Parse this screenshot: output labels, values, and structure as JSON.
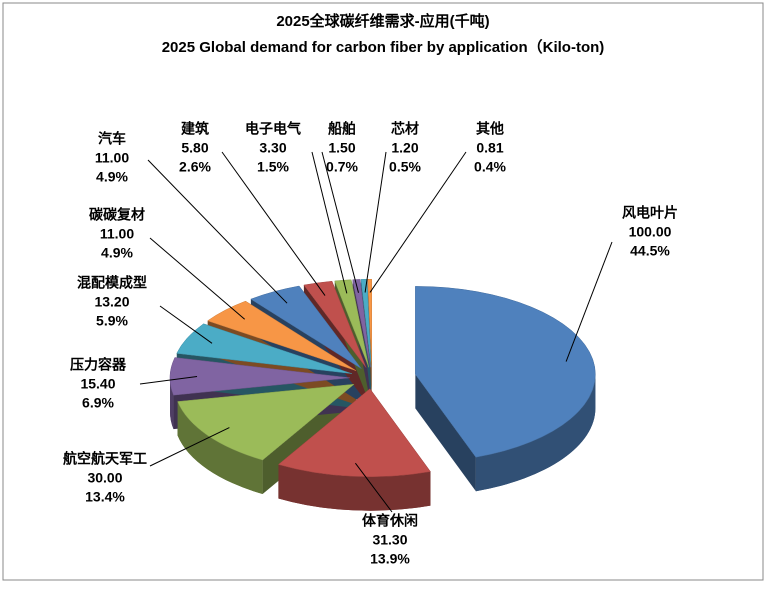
{
  "chart_data": {
    "type": "pie3d",
    "title": "2025全球碳纤维需求-应用(千吨)",
    "subtitle": "2025 Global demand for carbon fiber by application（Kilo-ton)",
    "categories": [
      "风电叶片",
      "体育休闲",
      "航空航天军工",
      "压力容器",
      "混配模成型",
      "碳碳复材",
      "汽车",
      "建筑",
      "电子电气",
      "船舶",
      "芯材",
      "其他"
    ],
    "values": [
      100,
      31.3,
      30,
      15.4,
      13.2,
      11,
      11,
      5.8,
      3.3,
      1.5,
      1.2,
      0.81
    ],
    "value_labels": [
      "100.00",
      "31.30",
      "30.00",
      "15.40",
      "13.20",
      "11.00",
      "11.00",
      "5.80",
      "3.30",
      "1.50",
      "1.20",
      "0.81"
    ],
    "percents": [
      44.5,
      13.9,
      13.4,
      6.9,
      5.9,
      4.9,
      4.9,
      2.6,
      1.5,
      0.7,
      0.5,
      0.4
    ],
    "percent_labels": [
      "44.5%",
      "13.9%",
      "13.4%",
      "6.9%",
      "5.9%",
      "4.9%",
      "4.9%",
      "2.6%",
      "1.5%",
      "0.7%",
      "0.5%",
      "0.4%"
    ],
    "colors": [
      "#4F81BD",
      "#C0504D",
      "#9BBB59",
      "#8064A2",
      "#4BACC6",
      "#F79646",
      "#4F81BD",
      "#C0504D",
      "#9BBB59",
      "#8064A2",
      "#4BACC6",
      "#F79646"
    ]
  }
}
